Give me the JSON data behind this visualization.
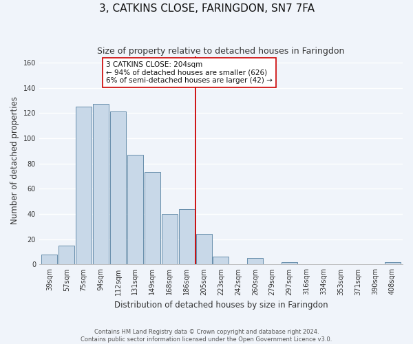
{
  "title": "3, CATKINS CLOSE, FARINGDON, SN7 7FA",
  "subtitle": "Size of property relative to detached houses in Faringdon",
  "xlabel": "Distribution of detached houses by size in Faringdon",
  "ylabel": "Number of detached properties",
  "bar_labels": [
    "39sqm",
    "57sqm",
    "75sqm",
    "94sqm",
    "112sqm",
    "131sqm",
    "149sqm",
    "168sqm",
    "186sqm",
    "205sqm",
    "223sqm",
    "242sqm",
    "260sqm",
    "279sqm",
    "297sqm",
    "316sqm",
    "334sqm",
    "353sqm",
    "371sqm",
    "390sqm",
    "408sqm"
  ],
  "bar_values": [
    8,
    15,
    125,
    127,
    121,
    87,
    73,
    40,
    44,
    24,
    6,
    0,
    5,
    0,
    2,
    0,
    0,
    0,
    0,
    0,
    2
  ],
  "bar_color": "#c8d8e8",
  "bar_edge_color": "#5580a0",
  "vline_index": 9,
  "vline_color": "#cc0000",
  "annotation_line1": "3 CATKINS CLOSE: 204sqm",
  "annotation_line2": "← 94% of detached houses are smaller (626)",
  "annotation_line3": "6% of semi-detached houses are larger (42) →",
  "ylim": [
    0,
    165
  ],
  "footer_line1": "Contains HM Land Registry data © Crown copyright and database right 2024.",
  "footer_line2": "Contains public sector information licensed under the Open Government Licence v3.0.",
  "bg_color": "#f0f4fa",
  "grid_color": "#ffffff",
  "title_fontsize": 11,
  "subtitle_fontsize": 9,
  "axis_label_fontsize": 8.5,
  "tick_fontsize": 7,
  "annotation_fontsize": 7.5,
  "footer_fontsize": 6
}
